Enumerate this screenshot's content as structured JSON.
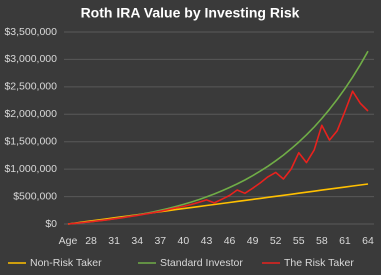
{
  "chart_data": {
    "type": "line",
    "title": "Roth IRA Value by Investing Risk",
    "categories": [
      "Age",
      null,
      null,
      "28",
      null,
      null,
      "31",
      null,
      null,
      "34",
      null,
      null,
      "37",
      null,
      null,
      "40",
      null,
      null,
      "43",
      null,
      null,
      "46",
      null,
      null,
      "49",
      null,
      null,
      "52",
      null,
      null,
      "55",
      null,
      null,
      "58",
      null,
      null,
      "61",
      null,
      null,
      "64"
    ],
    "series": [
      {
        "name": "Non-Risk Taker",
        "color": "#ffc000",
        "values": [
          0,
          18700,
          37400,
          56100,
          74800,
          93500,
          112200,
          130900,
          149600,
          168300,
          187000,
          205700,
          224400,
          243100,
          261800,
          280500,
          299200,
          317900,
          336600,
          355300,
          374000,
          392700,
          411400,
          430100,
          448800,
          467500,
          486200,
          504900,
          523600,
          542300,
          561000,
          579700,
          598400,
          617100,
          635800,
          654500,
          673200,
          691900,
          710600,
          729300
        ]
      },
      {
        "name": "Standard Investor",
        "color": "#70ad47",
        "values": [
          0,
          13180,
          27400,
          42770,
          59380,
          77300,
          96690,
          117600,
          140200,
          164600,
          190900,
          219400,
          250100,
          283300,
          319100,
          357900,
          399700,
          444800,
          493600,
          546300,
          603100,
          664600,
          731000,
          802600,
          880000,
          963500,
          1053800,
          1151200,
          1256600,
          1370300,
          1493100,
          1625800,
          1769000,
          1923600,
          2090700,
          2271100,
          2466000,
          2676500,
          2903800,
          3149200
        ]
      },
      {
        "name": "The Risk Taker",
        "color": "#e8221e",
        "values": [
          0,
          13000,
          27000,
          42000,
          58000,
          75000,
          94000,
          113000,
          134000,
          156000,
          180000,
          205000,
          232000,
          262000,
          295000,
          320000,
          355000,
          395000,
          440000,
          385000,
          450000,
          520000,
          620000,
          560000,
          650000,
          750000,
          860000,
          940000,
          820000,
          1000000,
          1300000,
          1120000,
          1350000,
          1800000,
          1530000,
          1700000,
          2050000,
          2420000,
          2200000,
          2060000
        ]
      }
    ],
    "ylim": [
      0,
      3500000
    ],
    "yticks": [
      {
        "value": 0,
        "label": "$0"
      },
      {
        "value": 500000,
        "label": "$500,000"
      },
      {
        "value": 1000000,
        "label": "$1,000,000"
      },
      {
        "value": 1500000,
        "label": "$1,500,000"
      },
      {
        "value": 2000000,
        "label": "$2,000,000"
      },
      {
        "value": 2500000,
        "label": "$2,500,000"
      },
      {
        "value": 3000000,
        "label": "$3,000,000"
      },
      {
        "value": 3500000,
        "label": "$3,500,000"
      }
    ],
    "grid": true,
    "legend": "bottom"
  }
}
